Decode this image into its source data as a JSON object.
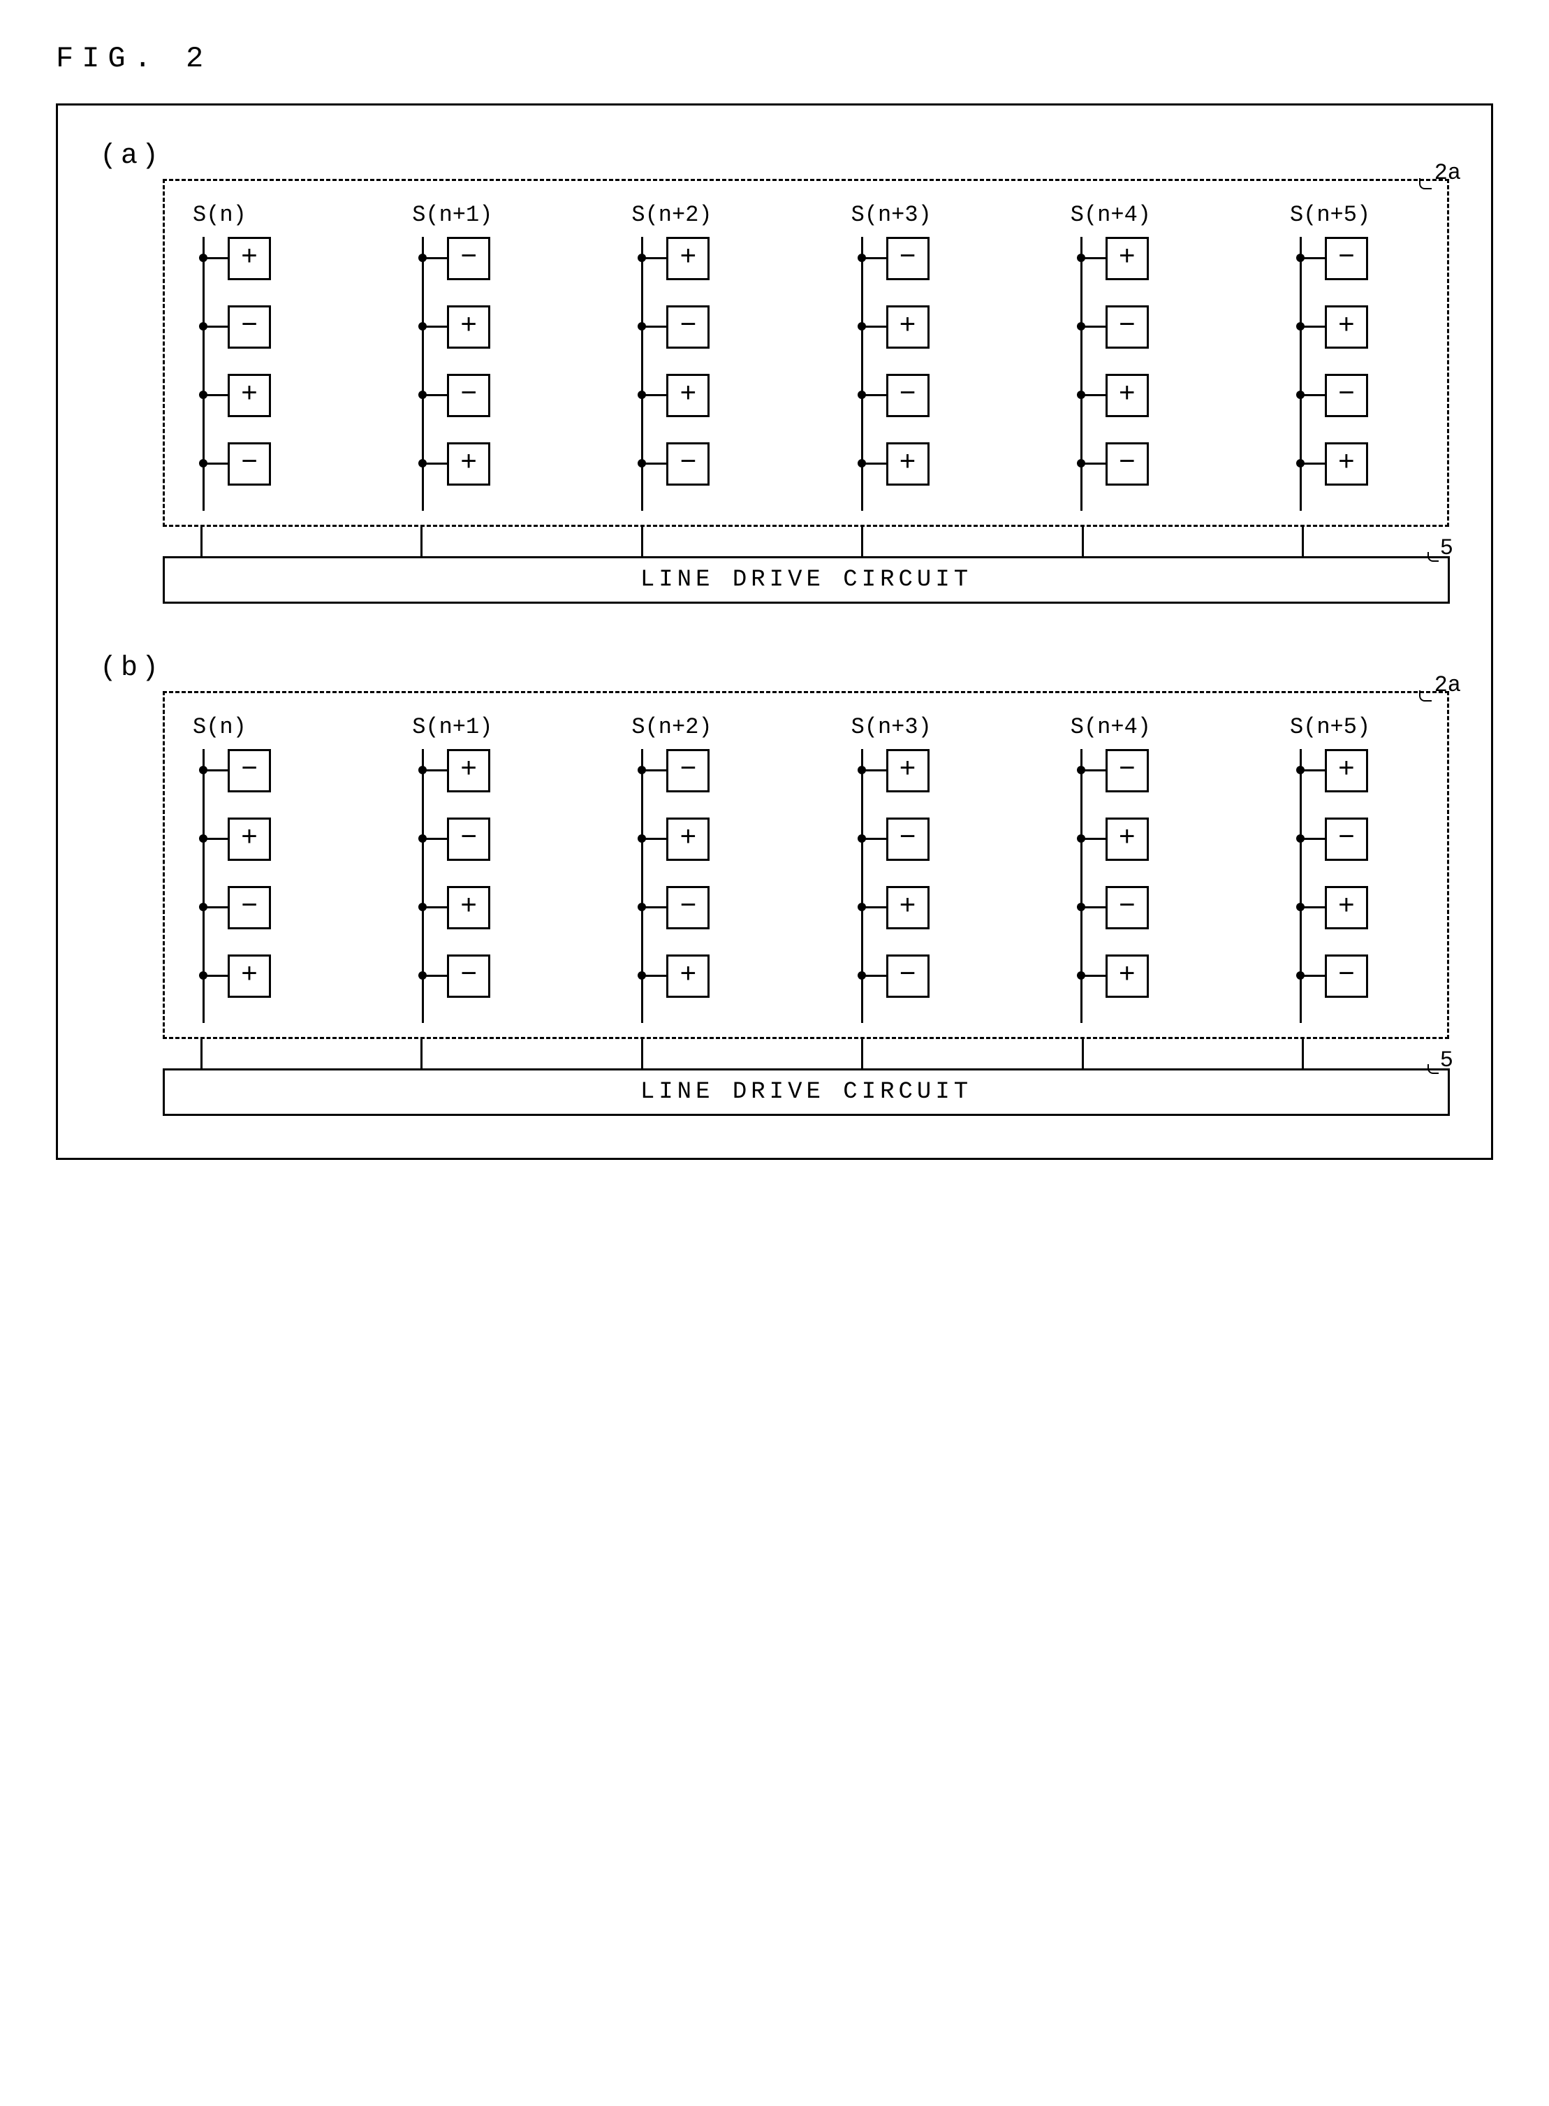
{
  "title": "FIG. 2",
  "subfigs": [
    {
      "label": "(a)",
      "ref_box": "2a",
      "ref_driver": "5",
      "driver_label": "LINE DRIVE CIRCUIT",
      "columns": [
        "S(n)",
        "S(n+1)",
        "S(n+2)",
        "S(n+3)",
        "S(n+4)",
        "S(n+5)"
      ],
      "grid": [
        [
          "+",
          "−",
          "+",
          "−",
          "+",
          "−"
        ],
        [
          "−",
          "+",
          "−",
          "+",
          "−",
          "+"
        ],
        [
          "+",
          "−",
          "+",
          "−",
          "+",
          "−"
        ],
        [
          "−",
          "+",
          "−",
          "+",
          "−",
          "+"
        ]
      ]
    },
    {
      "label": "(b)",
      "ref_box": "2a",
      "ref_driver": "5",
      "driver_label": "LINE DRIVE CIRCUIT",
      "columns": [
        "S(n)",
        "S(n+1)",
        "S(n+2)",
        "S(n+3)",
        "S(n+4)",
        "S(n+5)"
      ],
      "grid": [
        [
          "−",
          "+",
          "−",
          "+",
          "−",
          "+"
        ],
        [
          "+",
          "−",
          "+",
          "−",
          "+",
          "−"
        ],
        [
          "−",
          "+",
          "−",
          "+",
          "−",
          "+"
        ],
        [
          "+",
          "−",
          "+",
          "−",
          "+",
          "−"
        ]
      ]
    }
  ],
  "colors": {
    "stroke": "#000000",
    "background": "#ffffff"
  }
}
